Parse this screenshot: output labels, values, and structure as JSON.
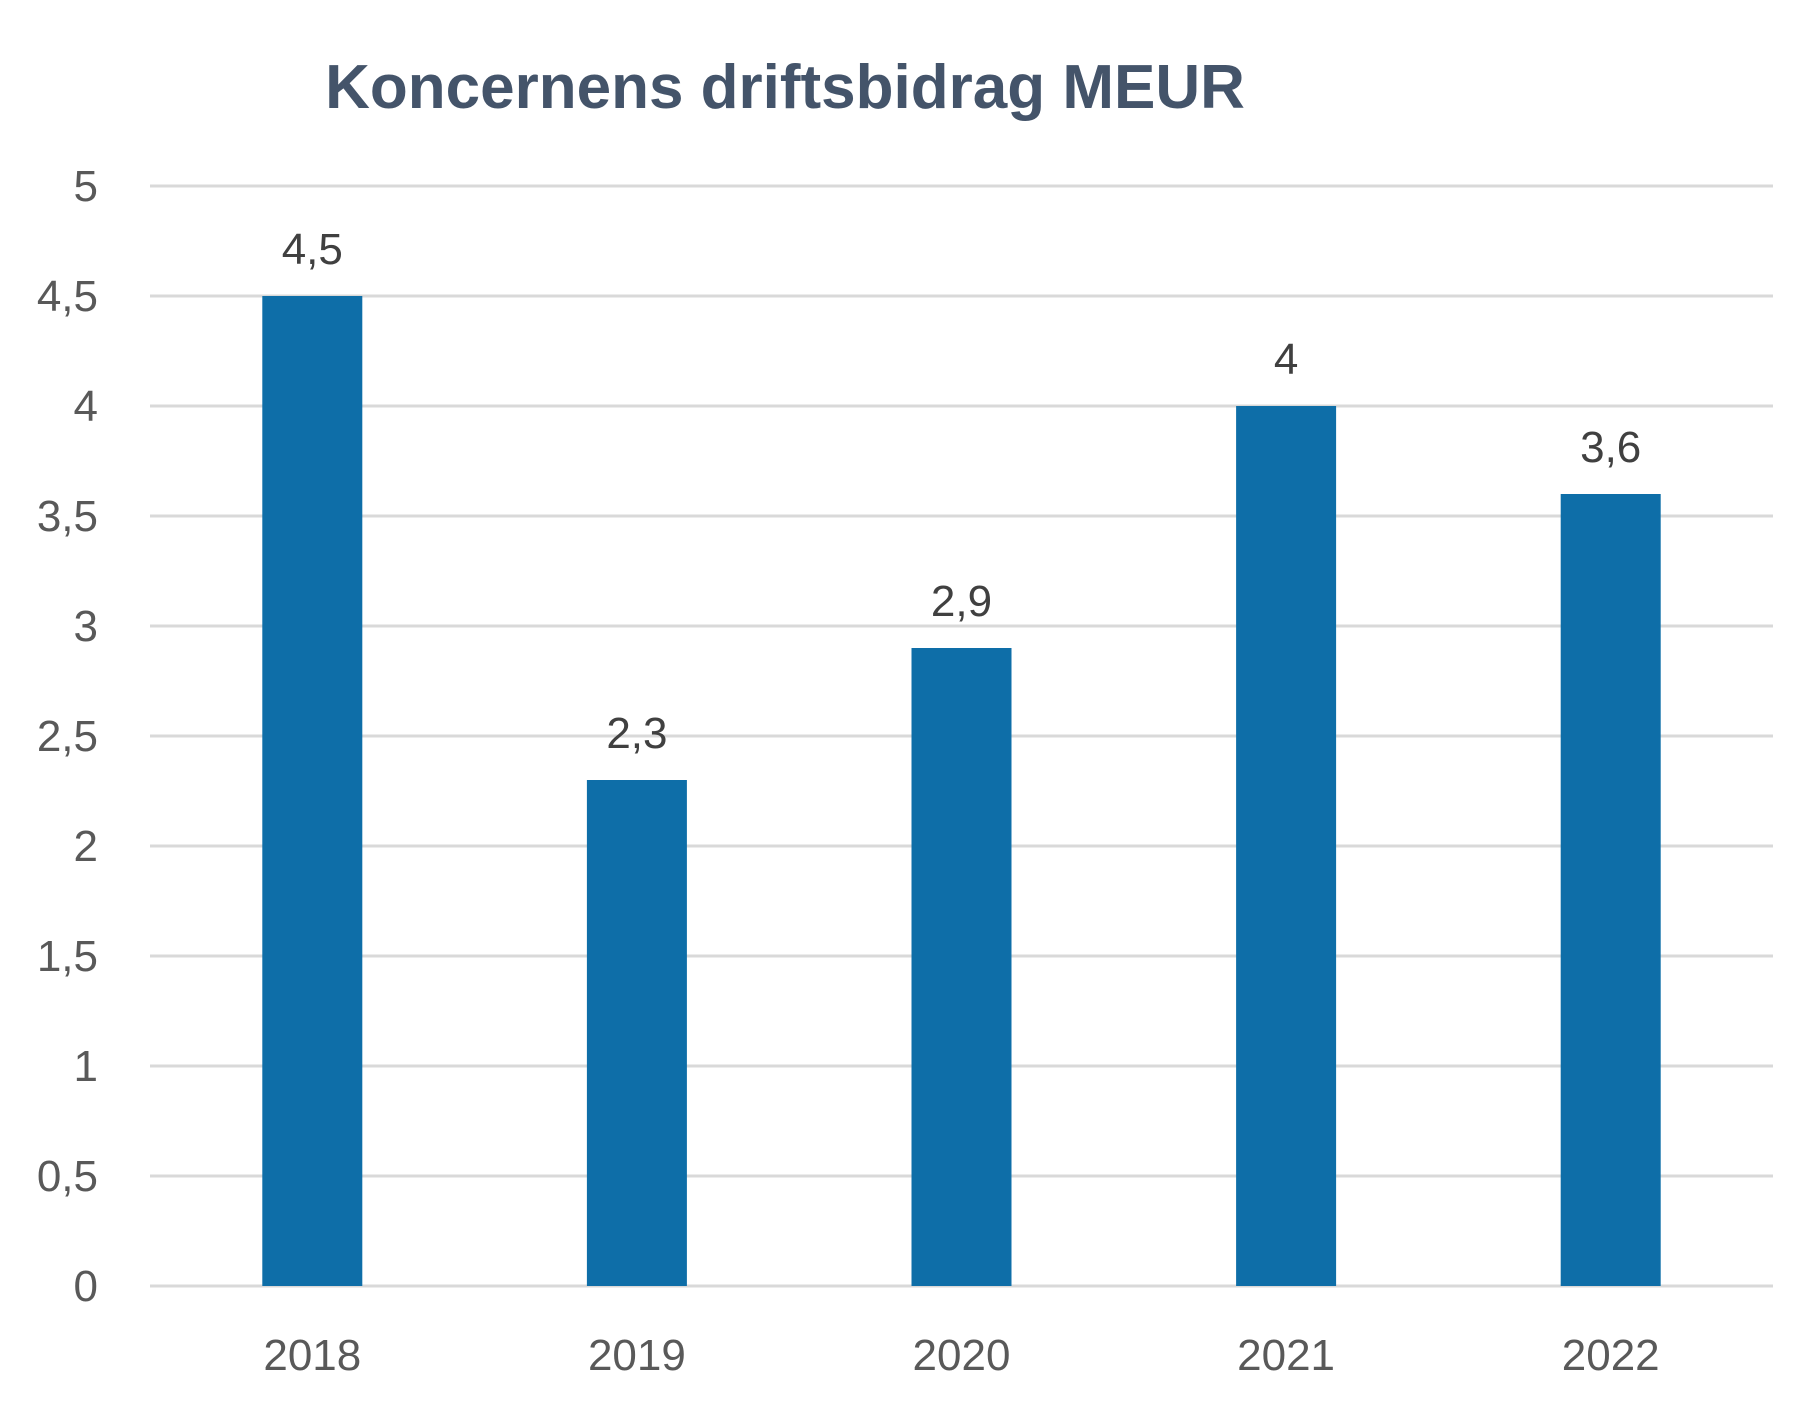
{
  "chart_data": {
    "type": "bar",
    "title": "Koncernens driftsbidrag MEUR",
    "xlabel": "",
    "ylabel": "",
    "categories": [
      "2018",
      "2019",
      "2020",
      "2021",
      "2022"
    ],
    "values": [
      4.5,
      2.3,
      2.9,
      4.0,
      3.6
    ],
    "data_labels": [
      "4,5",
      "2,3",
      "2,9",
      "4",
      "3,6"
    ],
    "ylim": [
      0,
      5
    ],
    "yticks": [
      0,
      0.5,
      1,
      1.5,
      2,
      2.5,
      3,
      3.5,
      4,
      4.5,
      5
    ],
    "ytick_labels": [
      "0",
      "0,5",
      "1",
      "1,5",
      "2",
      "2,5",
      "3",
      "3,5",
      "4",
      "4,5",
      "5"
    ],
    "grid": true,
    "legend": "none",
    "bar_color": "#0e6ea8",
    "grid_color": "#d9d9d9"
  }
}
